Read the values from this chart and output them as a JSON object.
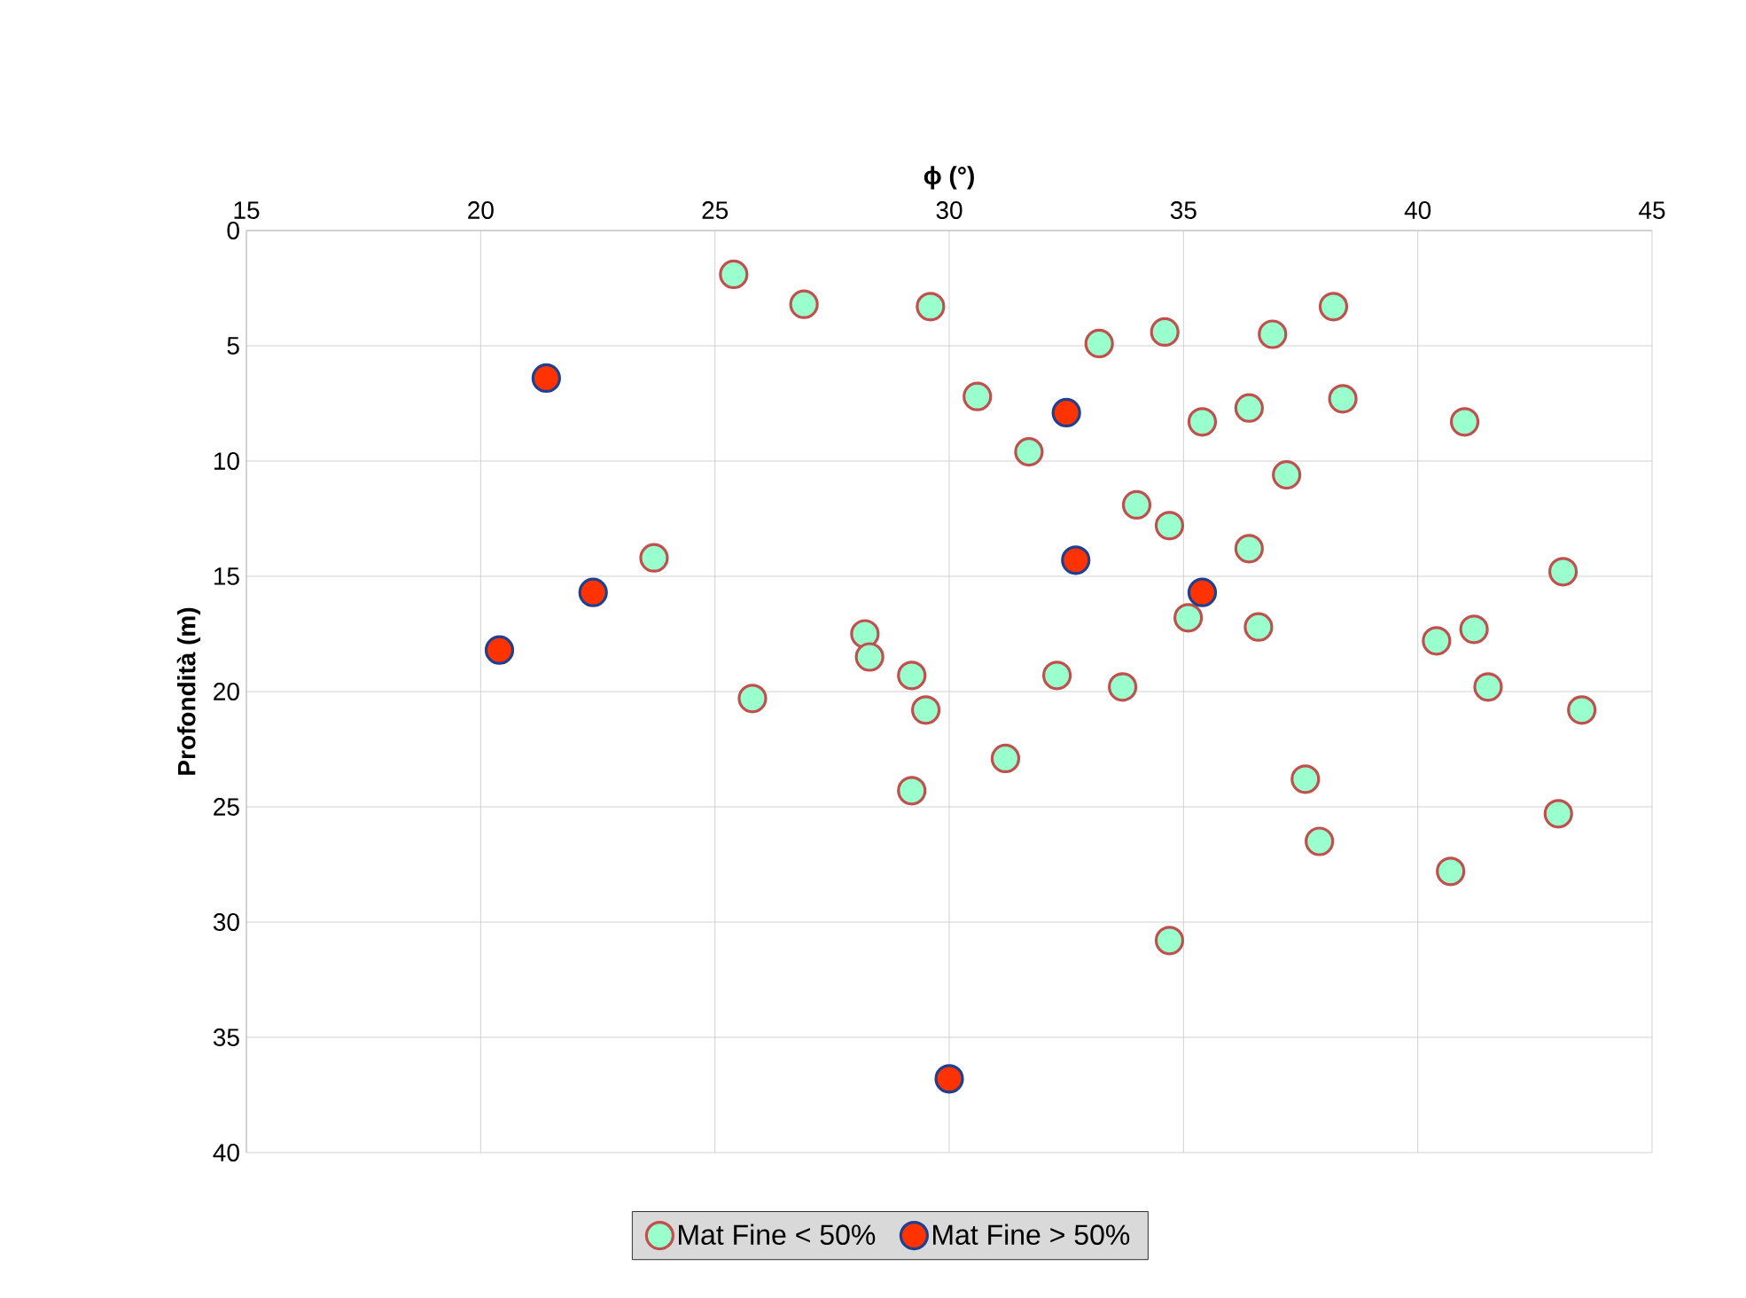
{
  "chart_data": {
    "type": "scatter",
    "xlabel": "ϕ (°)",
    "ylabel": "Profondità (m)",
    "xlim": [
      15,
      45
    ],
    "xticks": [
      15,
      20,
      25,
      30,
      35,
      40,
      45
    ],
    "ylim": [
      40,
      0
    ],
    "yticks": [
      0,
      5,
      10,
      15,
      20,
      25,
      30,
      35,
      40
    ],
    "grid": true,
    "legend": "bottom",
    "marker": "circle",
    "series": [
      {
        "name": "Mat Fine < 50%",
        "color": "#99ffcc",
        "x": [
          25.4,
          26.9,
          29.6,
          38.2,
          34.6,
          36.9,
          33.2,
          30.6,
          36.4,
          38.4,
          35.4,
          41.0,
          31.7,
          37.2,
          34.0,
          34.7,
          36.4,
          23.7,
          43.1,
          35.1,
          36.6,
          28.2,
          28.3,
          40.4,
          41.2,
          29.2,
          32.3,
          33.7,
          41.5,
          25.8,
          29.5,
          43.5,
          31.2,
          29.2,
          37.6,
          43.0,
          37.9,
          40.7,
          34.7
        ],
        "values": [
          1.9,
          3.2,
          3.3,
          3.3,
          4.4,
          4.5,
          4.9,
          7.2,
          7.7,
          7.3,
          8.3,
          8.3,
          9.6,
          10.6,
          11.9,
          12.8,
          13.8,
          14.2,
          14.8,
          16.8,
          17.2,
          17.5,
          18.5,
          17.8,
          17.3,
          19.3,
          19.3,
          19.8,
          19.8,
          20.3,
          20.8,
          20.8,
          22.9,
          24.3,
          23.8,
          25.3,
          26.5,
          27.8,
          30.8
        ]
      },
      {
        "name": "Mat Fine > 50%",
        "color": "#ff3300",
        "x": [
          21.4,
          32.5,
          32.7,
          35.4,
          22.4,
          20.4,
          30.0
        ],
        "values": [
          6.4,
          7.9,
          14.3,
          15.7,
          15.7,
          18.2,
          36.8
        ]
      }
    ]
  }
}
